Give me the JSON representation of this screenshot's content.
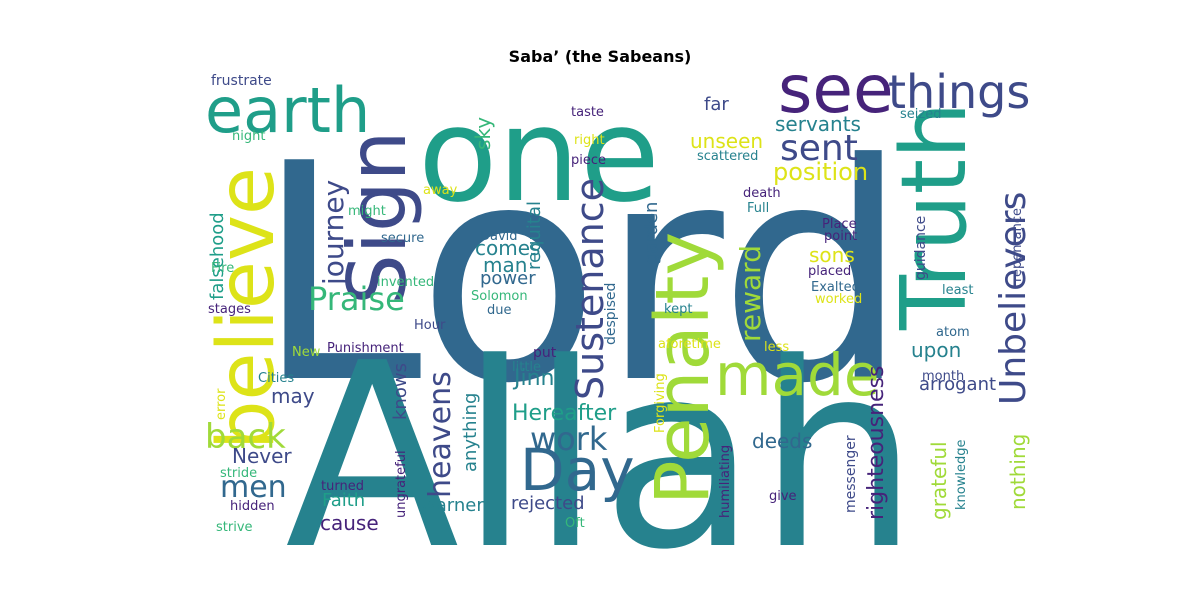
{
  "title": "Saba’ (the Sabeans)",
  "palette": {
    "purple": "#46237a",
    "indigo": "#3e4a89",
    "blue": "#31688e",
    "teal": "#26828e",
    "green": "#1f9e89",
    "mint": "#35b779",
    "lime": "#a0da39",
    "yellow": "#dde318"
  },
  "words": [
    {
      "text": "Lord",
      "color": "#31688e"
    },
    {
      "text": "Allah",
      "color": "#26828e"
    },
    {
      "text": "one",
      "color": "#1f9e89"
    },
    {
      "text": "earth",
      "color": "#1f9e89"
    },
    {
      "text": "see",
      "color": "#46237a"
    },
    {
      "text": "things",
      "color": "#3e4a89"
    },
    {
      "text": "Truth",
      "color": "#1f9e89"
    },
    {
      "text": "believe",
      "color": "#dde318"
    },
    {
      "text": "Sign",
      "color": "#3e4a89"
    },
    {
      "text": "Penalty",
      "color": "#a0da39"
    },
    {
      "text": "made",
      "color": "#a0da39"
    },
    {
      "text": "Day",
      "color": "#31688e"
    },
    {
      "text": "Sustenance",
      "color": "#3e4a89"
    },
    {
      "text": "Unbelievers",
      "color": "#3e4a89"
    },
    {
      "text": "sent",
      "color": "#3e4a89"
    },
    {
      "text": "Praise",
      "color": "#35b779"
    },
    {
      "text": "journey",
      "color": "#3e4a89"
    },
    {
      "text": "heavens",
      "color": "#3e4a89"
    },
    {
      "text": "work",
      "color": "#31688e"
    },
    {
      "text": "back",
      "color": "#a0da39"
    },
    {
      "text": "men",
      "color": "#31688e"
    },
    {
      "text": "reward",
      "color": "#a0da39"
    },
    {
      "text": "position",
      "color": "#dde318"
    },
    {
      "text": "righteousness",
      "color": "#46237a"
    },
    {
      "text": "Hereafter",
      "color": "#1f9e89"
    },
    {
      "text": "Jinns",
      "color": "#26828e"
    },
    {
      "text": "grateful",
      "color": "#a0da39"
    },
    {
      "text": "nothing",
      "color": "#a0da39"
    },
    {
      "text": "deeds",
      "color": "#31688e"
    },
    {
      "text": "unseen",
      "color": "#dde318"
    },
    {
      "text": "servants",
      "color": "#26828e"
    },
    {
      "text": "falsehood",
      "color": "#1f9e89"
    },
    {
      "text": "requital",
      "color": "#26828e"
    },
    {
      "text": "garden",
      "color": "#31688e"
    },
    {
      "text": "comes",
      "color": "#26828e"
    },
    {
      "text": "man",
      "color": "#26828e"
    },
    {
      "text": "power",
      "color": "#31688e"
    },
    {
      "text": "sons",
      "color": "#dde318"
    },
    {
      "text": "upon",
      "color": "#26828e"
    },
    {
      "text": "arrogant",
      "color": "#3e4a89"
    },
    {
      "text": "anything",
      "color": "#26828e"
    },
    {
      "text": "knows",
      "color": "#3e4a89"
    },
    {
      "text": "cause",
      "color": "#46237a"
    },
    {
      "text": "Never",
      "color": "#3e4a89"
    },
    {
      "text": "may",
      "color": "#3e4a89"
    },
    {
      "text": "sky",
      "color": "#35b779"
    },
    {
      "text": "far",
      "color": "#3e4a89"
    },
    {
      "text": "rejected",
      "color": "#3e4a89"
    },
    {
      "text": "warner",
      "color": "#26828e"
    },
    {
      "text": "Faith",
      "color": "#1f9e89"
    },
    {
      "text": "messenger",
      "color": "#3e4a89"
    },
    {
      "text": "guidance",
      "color": "#3e4a89"
    },
    {
      "text": "despised",
      "color": "#31688e"
    },
    {
      "text": "ungrateful",
      "color": "#46237a"
    },
    {
      "text": "frustrate",
      "color": "#3e4a89"
    },
    {
      "text": "night",
      "color": "#35b779"
    },
    {
      "text": "might",
      "color": "#35b779"
    },
    {
      "text": "away",
      "color": "#dde318"
    },
    {
      "text": "secure",
      "color": "#31688e"
    },
    {
      "text": "invented",
      "color": "#35b779"
    },
    {
      "text": "Fire",
      "color": "#35b779"
    },
    {
      "text": "stages",
      "color": "#46237a"
    },
    {
      "text": "Hour",
      "color": "#3e4a89"
    },
    {
      "text": "New",
      "color": "#a0da39"
    },
    {
      "text": "Punishment",
      "color": "#46237a"
    },
    {
      "text": "Cities",
      "color": "#26828e"
    },
    {
      "text": "error",
      "color": "#dde318"
    },
    {
      "text": "stride",
      "color": "#35b779"
    },
    {
      "text": "hidden",
      "color": "#46237a"
    },
    {
      "text": "strive",
      "color": "#35b779"
    },
    {
      "text": "turned",
      "color": "#46237a"
    },
    {
      "text": "taste",
      "color": "#46237a"
    },
    {
      "text": "right",
      "color": "#dde318"
    },
    {
      "text": "piece",
      "color": "#46237a"
    },
    {
      "text": "scattered",
      "color": "#26828e"
    },
    {
      "text": "death",
      "color": "#46237a"
    },
    {
      "text": "Full",
      "color": "#26828e"
    },
    {
      "text": "seized",
      "color": "#26828e"
    },
    {
      "text": "repentance",
      "color": "#3e4a89"
    },
    {
      "text": "Place",
      "color": "#46237a"
    },
    {
      "text": "point",
      "color": "#46237a"
    },
    {
      "text": "placed",
      "color": "#46237a"
    },
    {
      "text": "Exalted",
      "color": "#31688e"
    },
    {
      "text": "worked",
      "color": "#dde318"
    },
    {
      "text": "least",
      "color": "#26828e"
    },
    {
      "text": "atom",
      "color": "#31688e"
    },
    {
      "text": "month",
      "color": "#3e4a89"
    },
    {
      "text": "less",
      "color": "#dde318"
    },
    {
      "text": "aforetime",
      "color": "#dde318"
    },
    {
      "text": "kept",
      "color": "#26828e"
    },
    {
      "text": "put",
      "color": "#46237a"
    },
    {
      "text": "little",
      "color": "#26828e"
    },
    {
      "text": "David",
      "color": "#31688e"
    },
    {
      "text": "Solomon",
      "color": "#35b779"
    },
    {
      "text": "due",
      "color": "#31688e"
    },
    {
      "text": "Forgiving",
      "color": "#dde318"
    },
    {
      "text": "humiliating",
      "color": "#46237a"
    },
    {
      "text": "give",
      "color": "#46237a"
    },
    {
      "text": "knowledge",
      "color": "#26828e"
    },
    {
      "text": "Oft",
      "color": "#35b779"
    }
  ]
}
